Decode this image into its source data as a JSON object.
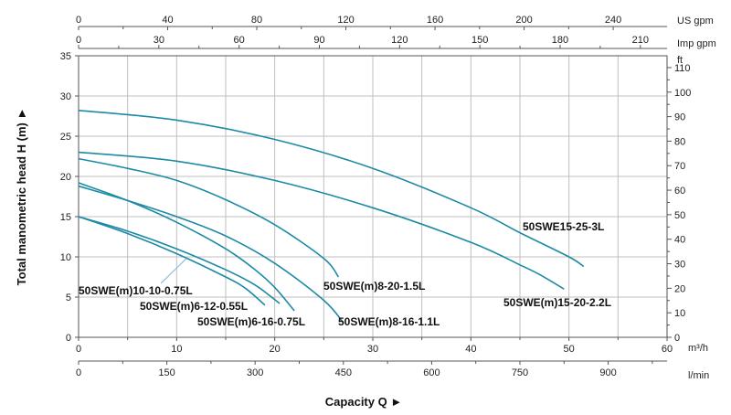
{
  "chart_data": {
    "type": "line",
    "xlabel": "Capacity Q ►",
    "ylabel": "Total manometric head H (m) ►",
    "x_unit": "m³/h",
    "y_unit_right": "ft",
    "xlim": [
      0,
      60
    ],
    "ylim": [
      0,
      35
    ],
    "grid": true,
    "x_ticks": [
      "0",
      "10",
      "20",
      "30",
      "40",
      "50",
      "60"
    ],
    "y_ticks": [
      "0",
      "5",
      "10",
      "15",
      "20",
      "25",
      "30",
      "35"
    ],
    "secondary_axes": {
      "us_gpm": {
        "unit": "US gpm",
        "ticks": [
          "0",
          "40",
          "80",
          "120",
          "160",
          "200",
          "240"
        ],
        "values": [
          0,
          40,
          80,
          120,
          160,
          200,
          240
        ]
      },
      "imp_gpm": {
        "unit": "Imp gpm",
        "ticks": [
          "0",
          "30",
          "60",
          "90",
          "120",
          "150",
          "180",
          "210"
        ],
        "values": [
          0,
          30,
          60,
          90,
          120,
          150,
          180,
          210
        ]
      },
      "l_min": {
        "unit": "l/min",
        "ticks": [
          "0",
          "150",
          "300",
          "450",
          "600",
          "750",
          "900"
        ],
        "values": [
          0,
          150,
          300,
          450,
          600,
          750,
          900
        ]
      },
      "ft": {
        "unit": "ft",
        "ticks": [
          "0",
          "10",
          "20",
          "30",
          "40",
          "50",
          "60",
          "70",
          "80",
          "90",
          "100",
          "110"
        ],
        "values": [
          0,
          10,
          20,
          30,
          40,
          50,
          60,
          70,
          80,
          90,
          100,
          110
        ]
      }
    },
    "series": [
      {
        "name": "50SWE15-25-3L",
        "x": [
          0,
          10,
          20,
          30,
          40,
          45,
          50,
          51.5
        ],
        "y": [
          28.2,
          27.0,
          24.6,
          21.0,
          16.1,
          13.0,
          10.0,
          8.8
        ]
      },
      {
        "name": "50SWE(m)15-20-2.2L",
        "x": [
          0,
          10,
          20,
          30,
          40,
          45,
          47,
          49.5
        ],
        "y": [
          23.0,
          21.9,
          19.5,
          16.1,
          11.8,
          9.0,
          7.8,
          6.0
        ]
      },
      {
        "name": "50SWE(m)8-20-1.5L",
        "x": [
          0,
          5,
          10,
          15,
          20,
          25,
          26.5
        ],
        "y": [
          22.2,
          21.0,
          19.5,
          17.1,
          14.0,
          9.8,
          7.5
        ]
      },
      {
        "name": "50SWE(m)8-16-1.1L",
        "x": [
          0,
          5,
          10,
          15,
          20,
          25,
          27
        ],
        "y": [
          18.8,
          17.0,
          15.0,
          12.6,
          9.2,
          4.6,
          1.8
        ]
      },
      {
        "name": "50SWE(m)6-16-0.75L",
        "x": [
          0,
          5,
          10,
          15,
          18,
          20,
          22
        ],
        "y": [
          19.2,
          17.0,
          14.3,
          11.0,
          8.4,
          6.2,
          3.3
        ]
      },
      {
        "name": "50SWE(m)6-12-0.55L",
        "x": [
          0,
          5,
          10,
          15,
          18,
          20.5
        ],
        "y": [
          15.0,
          13.2,
          11.0,
          8.4,
          6.5,
          4.2
        ]
      },
      {
        "name": "50SWE(m)10-10-0.75L",
        "x": [
          0,
          5,
          10,
          15,
          17,
          19
        ],
        "y": [
          15.0,
          12.9,
          10.4,
          7.5,
          6.1,
          4.0
        ]
      }
    ],
    "colors": {
      "curve": "#1c8aa5",
      "grid": "#bfbfbf",
      "frame": "#555555",
      "leader": "#7fb7cf"
    }
  }
}
